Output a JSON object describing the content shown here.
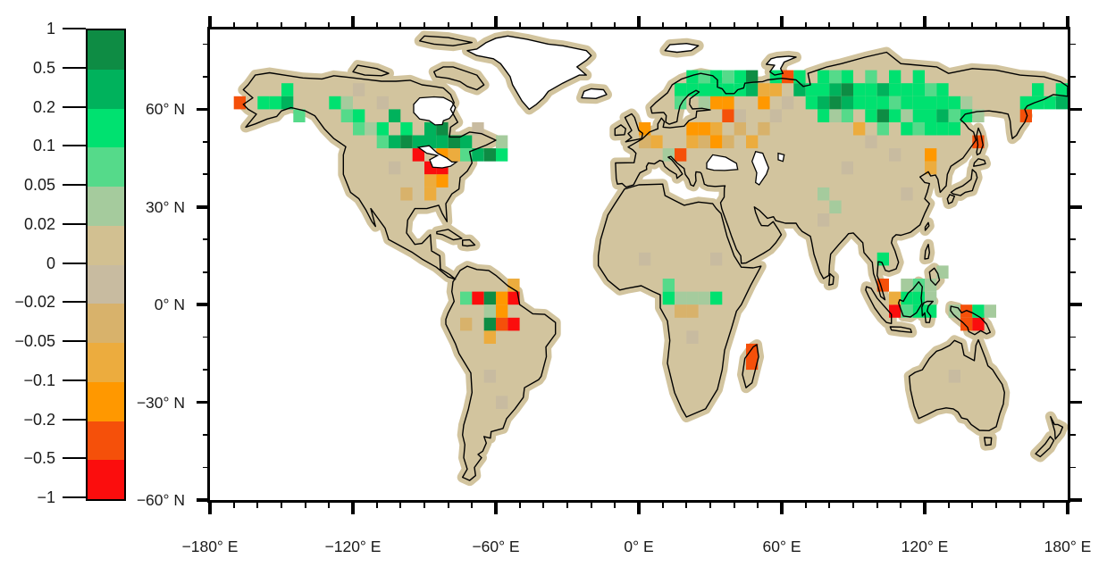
{
  "figure": {
    "background": "#ffffff",
    "text_color": "#1a1a1a",
    "frame_color": "#000000"
  },
  "chart_data": {
    "type": "heatmap",
    "projection": "equirectangular",
    "map_extent": {
      "lon": [
        -180,
        180
      ],
      "lat": [
        -60,
        84.5
      ]
    },
    "land_color": "#d2c49e",
    "ocean_color": "#ffffff",
    "coastline_color": "#000000",
    "colorbar": {
      "tick_labels": [
        "1",
        "0.5",
        "0.2",
        "0.1",
        "0.05",
        "0.02",
        "0",
        "−0.02",
        "−0.05",
        "−0.1",
        "−0.2",
        "−0.5",
        "−1"
      ],
      "levels": [
        1,
        0.5,
        0.2,
        0.1,
        0.05,
        0.02,
        0,
        -0.02,
        -0.05,
        -0.1,
        -0.2,
        -0.5,
        -1
      ],
      "colors_top_to_bottom": [
        "#0e8c44",
        "#00b25c",
        "#00e170",
        "#55da8a",
        "#a5cb9d",
        "#d2c091",
        "#c8bba0",
        "#d8b26b",
        "#ecac3e",
        "#ff9800",
        "#f5500a",
        "#fb0d0d"
      ]
    },
    "xaxis": {
      "tick_labels": [
        "−180° E",
        "−120° E",
        "−60° E",
        "0° E",
        "60° E",
        "120° E",
        "180° E"
      ],
      "tick_lons": [
        -180,
        -120,
        -60,
        0,
        60,
        120,
        180
      ],
      "minor_step": 10
    },
    "yaxis": {
      "tick_labels": [
        "60° N",
        "30° N",
        "0° N",
        "−30° N",
        "−60° N"
      ],
      "tick_lats": [
        60,
        30,
        0,
        -30,
        -60
      ],
      "minor_step": 10
    },
    "cell_size": {
      "dlon": 5,
      "dlat": 4
    },
    "cells": [
      {
        "lon": -170,
        "lat": 60,
        "v": -0.3
      },
      {
        "lon": -160,
        "lat": 60,
        "v": 0.15
      },
      {
        "lon": -155,
        "lat": 60,
        "v": 0.15
      },
      {
        "lon": -150,
        "lat": 60,
        "v": 0.3
      },
      {
        "lon": -150,
        "lat": 64,
        "v": 0.15
      },
      {
        "lon": -145,
        "lat": 56,
        "v": 0.07
      },
      {
        "lon": -130,
        "lat": 60,
        "v": 0.15
      },
      {
        "lon": -125,
        "lat": 60,
        "v": 0.03
      },
      {
        "lon": -125,
        "lat": 56,
        "v": 0.07
      },
      {
        "lon": -120,
        "lat": 56,
        "v": 0.15
      },
      {
        "lon": -120,
        "lat": 52,
        "v": 0.07
      },
      {
        "lon": -115,
        "lat": 52,
        "v": 0.03
      },
      {
        "lon": -110,
        "lat": 52,
        "v": 0.15
      },
      {
        "lon": -110,
        "lat": 48,
        "v": 0.07
      },
      {
        "lon": -105,
        "lat": 56,
        "v": 0.3
      },
      {
        "lon": -105,
        "lat": 48,
        "v": 0.3
      },
      {
        "lon": -100,
        "lat": 52,
        "v": 0.15
      },
      {
        "lon": -100,
        "lat": 48,
        "v": 0.7
      },
      {
        "lon": -95,
        "lat": 48,
        "v": 0.3
      },
      {
        "lon": -90,
        "lat": 48,
        "v": 0.3
      },
      {
        "lon": -90,
        "lat": 52,
        "v": 0.3
      },
      {
        "lon": -85,
        "lat": 52,
        "v": 0.7
      },
      {
        "lon": -85,
        "lat": 48,
        "v": 0.3
      },
      {
        "lon": -80,
        "lat": 48,
        "v": 0.7
      },
      {
        "lon": -75,
        "lat": 48,
        "v": 0.3
      },
      {
        "lon": -75,
        "lat": 44,
        "v": 0.07
      },
      {
        "lon": -70,
        "lat": 44,
        "v": 0.3
      },
      {
        "lon": -65,
        "lat": 44,
        "v": 0.7
      },
      {
        "lon": -60,
        "lat": 44,
        "v": 0.15
      },
      {
        "lon": -60,
        "lat": 48,
        "v": 0.03
      },
      {
        "lon": -95,
        "lat": 44,
        "v": -0.7
      },
      {
        "lon": -90,
        "lat": 40,
        "v": -0.7
      },
      {
        "lon": -85,
        "lat": 40,
        "v": -0.7
      },
      {
        "lon": -85,
        "lat": 44,
        "v": -0.15
      },
      {
        "lon": -80,
        "lat": 44,
        "v": -0.07
      },
      {
        "lon": -90,
        "lat": 36,
        "v": -0.07
      },
      {
        "lon": -85,
        "lat": 36,
        "v": -0.15
      },
      {
        "lon": -90,
        "lat": 32,
        "v": -0.07
      },
      {
        "lon": -75,
        "lat": 0,
        "v": 0.07
      },
      {
        "lon": -70,
        "lat": 0,
        "v": -0.7
      },
      {
        "lon": -65,
        "lat": 0,
        "v": 0.7
      },
      {
        "lon": -65,
        "lat": -4,
        "v": 0.03
      },
      {
        "lon": -65,
        "lat": -8,
        "v": 0.7
      },
      {
        "lon": -60,
        "lat": -4,
        "v": -0.15
      },
      {
        "lon": -60,
        "lat": -8,
        "v": -0.3
      },
      {
        "lon": -55,
        "lat": -8,
        "v": -0.7
      },
      {
        "lon": -55,
        "lat": 0,
        "v": -0.7
      },
      {
        "lon": -55,
        "lat": 4,
        "v": -0.07
      },
      {
        "lon": -65,
        "lat": -12,
        "v": -0.07
      },
      {
        "lon": -75,
        "lat": -8,
        "v": -0.03
      },
      {
        "lon": -60,
        "lat": 0,
        "v": -0.15
      },
      {
        "lon": 0,
        "lat": 52,
        "v": -0.15
      },
      {
        "lon": 0,
        "lat": 48,
        "v": -0.03
      },
      {
        "lon": 5,
        "lat": 48,
        "v": -0.07
      },
      {
        "lon": 15,
        "lat": 44,
        "v": -0.3
      },
      {
        "lon": 10,
        "lat": 44,
        "v": 0.03
      },
      {
        "lon": 20,
        "lat": 52,
        "v": -0.15
      },
      {
        "lon": 25,
        "lat": 52,
        "v": -0.15
      },
      {
        "lon": 30,
        "lat": 52,
        "v": -0.07
      },
      {
        "lon": 20,
        "lat": 48,
        "v": -0.07
      },
      {
        "lon": 25,
        "lat": 48,
        "v": -0.03
      },
      {
        "lon": 30,
        "lat": 48,
        "v": -0.15
      },
      {
        "lon": 35,
        "lat": 48,
        "v": -0.03
      },
      {
        "lon": 30,
        "lat": 60,
        "v": -0.15
      },
      {
        "lon": 35,
        "lat": 60,
        "v": -0.15
      },
      {
        "lon": 35,
        "lat": 56,
        "v": -0.3
      },
      {
        "lon": 45,
        "lat": 48,
        "v": -0.07
      },
      {
        "lon": 40,
        "lat": 52,
        "v": -0.03
      },
      {
        "lon": 15,
        "lat": 64,
        "v": 0.15
      },
      {
        "lon": 20,
        "lat": 64,
        "v": 0.15
      },
      {
        "lon": 25,
        "lat": 64,
        "v": 0.15
      },
      {
        "lon": 30,
        "lat": 64,
        "v": 0.15
      },
      {
        "lon": 35,
        "lat": 64,
        "v": 0.15
      },
      {
        "lon": 40,
        "lat": 64,
        "v": 0.15
      },
      {
        "lon": 20,
        "lat": 68,
        "v": 0.15
      },
      {
        "lon": 25,
        "lat": 68,
        "v": 0.07
      },
      {
        "lon": 30,
        "lat": 68,
        "v": 0.15
      },
      {
        "lon": 15,
        "lat": 60,
        "v": 0.07
      },
      {
        "lon": 25,
        "lat": 60,
        "v": 0.03
      },
      {
        "lon": 40,
        "lat": 68,
        "v": 0.15
      },
      {
        "lon": 35,
        "lat": 68,
        "v": 0.07
      },
      {
        "lon": 45,
        "lat": 64,
        "v": 0.3
      },
      {
        "lon": 45,
        "lat": 68,
        "v": 0.7
      },
      {
        "lon": 50,
        "lat": 60,
        "v": -0.15
      },
      {
        "lon": 50,
        "lat": 64,
        "v": -0.07
      },
      {
        "lon": 55,
        "lat": 64,
        "v": -0.07
      },
      {
        "lon": 60,
        "lat": 68,
        "v": -0.3
      },
      {
        "lon": 55,
        "lat": 68,
        "v": 0.15
      },
      {
        "lon": 65,
        "lat": 64,
        "v": 0.3
      },
      {
        "lon": 70,
        "lat": 64,
        "v": 0.15
      },
      {
        "lon": 75,
        "lat": 64,
        "v": 0.15
      },
      {
        "lon": 80,
        "lat": 64,
        "v": 0.3
      },
      {
        "lon": 85,
        "lat": 64,
        "v": 0.7
      },
      {
        "lon": 65,
        "lat": 68,
        "v": 0.15
      },
      {
        "lon": 75,
        "lat": 68,
        "v": 0.15
      },
      {
        "lon": 85,
        "lat": 68,
        "v": 0.15
      },
      {
        "lon": 70,
        "lat": 60,
        "v": 0.15
      },
      {
        "lon": 75,
        "lat": 60,
        "v": 0.3
      },
      {
        "lon": 80,
        "lat": 60,
        "v": 0.7
      },
      {
        "lon": 85,
        "lat": 60,
        "v": 0.3
      },
      {
        "lon": 90,
        "lat": 60,
        "v": 0.15
      },
      {
        "lon": 75,
        "lat": 56,
        "v": 0.15
      },
      {
        "lon": 80,
        "lat": 56,
        "v": 0.03
      },
      {
        "lon": 85,
        "lat": 56,
        "v": 0.07
      },
      {
        "lon": 90,
        "lat": 64,
        "v": 0.15
      },
      {
        "lon": 80,
        "lat": 68,
        "v": 0.07
      },
      {
        "lon": 95,
        "lat": 64,
        "v": 0.15
      },
      {
        "lon": 100,
        "lat": 64,
        "v": 0.3
      },
      {
        "lon": 105,
        "lat": 64,
        "v": 0.15
      },
      {
        "lon": 110,
        "lat": 64,
        "v": 0.15
      },
      {
        "lon": 115,
        "lat": 64,
        "v": 0.15
      },
      {
        "lon": 120,
        "lat": 64,
        "v": 0.07
      },
      {
        "lon": 95,
        "lat": 60,
        "v": 0.15
      },
      {
        "lon": 100,
        "lat": 60,
        "v": 0.15
      },
      {
        "lon": 105,
        "lat": 60,
        "v": 0.07
      },
      {
        "lon": 110,
        "lat": 60,
        "v": 0.15
      },
      {
        "lon": 115,
        "lat": 60,
        "v": 0.15
      },
      {
        "lon": 120,
        "lat": 60,
        "v": 0.15
      },
      {
        "lon": 125,
        "lat": 60,
        "v": 0.15
      },
      {
        "lon": 130,
        "lat": 60,
        "v": 0.15
      },
      {
        "lon": 135,
        "lat": 60,
        "v": 0.03
      },
      {
        "lon": 95,
        "lat": 56,
        "v": 0.15
      },
      {
        "lon": 100,
        "lat": 56,
        "v": 0.7
      },
      {
        "lon": 105,
        "lat": 56,
        "v": 0.15
      },
      {
        "lon": 110,
        "lat": 56,
        "v": 0.03
      },
      {
        "lon": 115,
        "lat": 56,
        "v": 0.15
      },
      {
        "lon": 120,
        "lat": 56,
        "v": 0.15
      },
      {
        "lon": 125,
        "lat": 56,
        "v": 0.3
      },
      {
        "lon": 130,
        "lat": 56,
        "v": 0.07
      },
      {
        "lon": 100,
        "lat": 52,
        "v": 0.07
      },
      {
        "lon": 110,
        "lat": 52,
        "v": 0.15
      },
      {
        "lon": 115,
        "lat": 52,
        "v": 0.07
      },
      {
        "lon": 120,
        "lat": 52,
        "v": 0.15
      },
      {
        "lon": 125,
        "lat": 52,
        "v": 0.15
      },
      {
        "lon": 130,
        "lat": 52,
        "v": 0.15
      },
      {
        "lon": 90,
        "lat": 52,
        "v": -0.07
      },
      {
        "lon": 95,
        "lat": 68,
        "v": 0.07
      },
      {
        "lon": 105,
        "lat": 68,
        "v": 0.15
      },
      {
        "lon": 115,
        "lat": 68,
        "v": 0.15
      },
      {
        "lon": 125,
        "lat": 64,
        "v": 0.15
      },
      {
        "lon": 135,
        "lat": 56,
        "v": 0.15
      },
      {
        "lon": 140,
        "lat": 56,
        "v": 0.03
      },
      {
        "lon": 140,
        "lat": 48,
        "v": -0.3
      },
      {
        "lon": 160,
        "lat": 56,
        "v": -0.3
      },
      {
        "lon": 160,
        "lat": 60,
        "v": 0.15
      },
      {
        "lon": 165,
        "lat": 60,
        "v": 0.15
      },
      {
        "lon": 170,
        "lat": 60,
        "v": 0.15
      },
      {
        "lon": 175,
        "lat": 60,
        "v": 0.3
      },
      {
        "lon": 165,
        "lat": 64,
        "v": 0.15
      },
      {
        "lon": 175,
        "lat": 64,
        "v": 0.15
      },
      {
        "lon": 120,
        "lat": 44,
        "v": -0.15
      },
      {
        "lon": 120,
        "lat": 40,
        "v": -0.07
      },
      {
        "lon": 75,
        "lat": 32,
        "v": 0.03
      },
      {
        "lon": 80,
        "lat": 28,
        "v": 0.03
      },
      {
        "lon": 100,
        "lat": 12,
        "v": 0.15
      },
      {
        "lon": 100,
        "lat": 4,
        "v": -0.3
      },
      {
        "lon": 105,
        "lat": -4,
        "v": -0.7
      },
      {
        "lon": 105,
        "lat": 0,
        "v": -0.07
      },
      {
        "lon": 110,
        "lat": 0,
        "v": 0.15
      },
      {
        "lon": 115,
        "lat": 0,
        "v": 0.15
      },
      {
        "lon": 110,
        "lat": -4,
        "v": 0.07
      },
      {
        "lon": 115,
        "lat": -4,
        "v": 0.15
      },
      {
        "lon": 110,
        "lat": 4,
        "v": 0.03
      },
      {
        "lon": 115,
        "lat": 4,
        "v": 0.07
      },
      {
        "lon": 120,
        "lat": -4,
        "v": 0.15
      },
      {
        "lon": 120,
        "lat": 0,
        "v": 0.03
      },
      {
        "lon": 120,
        "lat": 4,
        "v": 0.03
      },
      {
        "lon": 125,
        "lat": 8,
        "v": 0.03
      },
      {
        "lon": 135,
        "lat": -4,
        "v": -0.3
      },
      {
        "lon": 135,
        "lat": -8,
        "v": -0.3
      },
      {
        "lon": 140,
        "lat": -8,
        "v": -0.7
      },
      {
        "lon": 140,
        "lat": -4,
        "v": 0.15
      },
      {
        "lon": 145,
        "lat": -4,
        "v": 0.03
      },
      {
        "lon": 130,
        "lat": -4,
        "v": 0.03
      },
      {
        "lon": 10,
        "lat": 0,
        "v": 0.15
      },
      {
        "lon": 15,
        "lat": 0,
        "v": 0.03
      },
      {
        "lon": 20,
        "lat": 0,
        "v": 0.03
      },
      {
        "lon": 25,
        "lat": 0,
        "v": 0.03
      },
      {
        "lon": 30,
        "lat": 0,
        "v": 0.15
      },
      {
        "lon": 20,
        "lat": -4,
        "v": -0.03
      },
      {
        "lon": 15,
        "lat": -4,
        "v": -0.03
      },
      {
        "lon": 10,
        "lat": 4,
        "v": 0.07
      },
      {
        "lon": 45,
        "lat": -16,
        "v": -0.3
      },
      {
        "lon": 45,
        "lat": -20,
        "v": -0.3
      },
      {
        "lon": -120,
        "lat": 64,
        "v": -0.01
      },
      {
        "lon": -110,
        "lat": 60,
        "v": -0.01
      },
      {
        "lon": -70,
        "lat": 52,
        "v": -0.01
      },
      {
        "lon": -105,
        "lat": 40,
        "v": -0.01
      },
      {
        "lon": 55,
        "lat": 56,
        "v": -0.01
      },
      {
        "lon": 60,
        "lat": 60,
        "v": -0.01
      },
      {
        "lon": 95,
        "lat": 48,
        "v": -0.01
      },
      {
        "lon": 105,
        "lat": 44,
        "v": -0.01
      },
      {
        "lon": 40,
        "lat": 56,
        "v": -0.01
      },
      {
        "lon": 20,
        "lat": -12,
        "v": -0.01
      },
      {
        "lon": 130,
        "lat": -24,
        "v": -0.01
      },
      {
        "lon": -60,
        "lat": -32,
        "v": -0.01
      },
      {
        "lon": 85,
        "lat": 40,
        "v": -0.01
      },
      {
        "lon": 75,
        "lat": 24,
        "v": -0.01
      },
      {
        "lon": 0,
        "lat": 12,
        "v": -0.01
      },
      {
        "lon": 30,
        "lat": 12,
        "v": -0.01
      },
      {
        "lon": -100,
        "lat": 32,
        "v": -0.03
      },
      {
        "lon": 50,
        "lat": 52,
        "v": -0.03
      },
      {
        "lon": 110,
        "lat": 32,
        "v": -0.01
      },
      {
        "lon": -65,
        "lat": -24,
        "v": -0.01
      }
    ]
  }
}
